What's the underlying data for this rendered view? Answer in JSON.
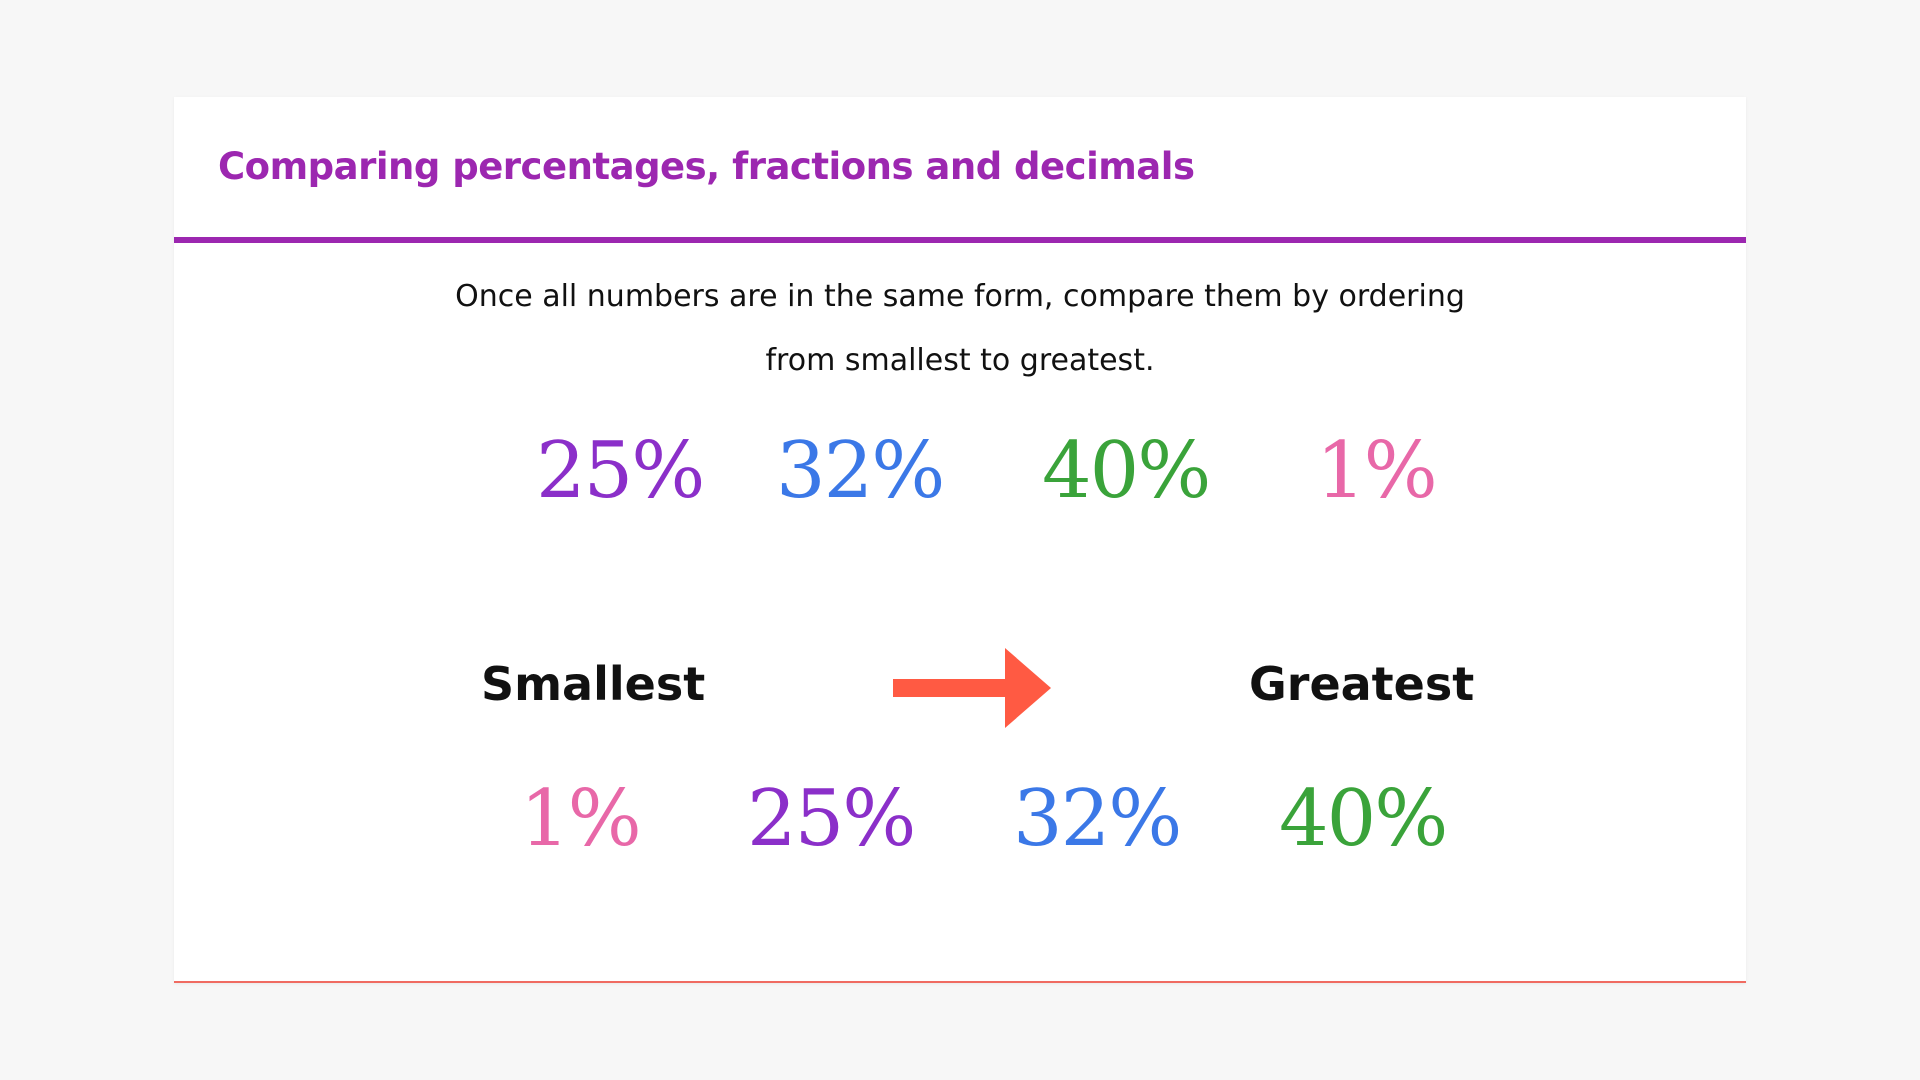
{
  "slide": {
    "title": "Comparing percentages, fractions and decimals",
    "intro_line1": "Once all numbers are in the same form, compare them by ordering",
    "intro_line2": "from smallest to greatest."
  },
  "unordered": [
    {
      "text": "25%",
      "color": "#8b2fc9"
    },
    {
      "text": "32%",
      "color": "#3b78e7"
    },
    {
      "text": "40%",
      "color": "#3aa33a"
    },
    {
      "text": "1%",
      "color": "#e868a8"
    }
  ],
  "labels": {
    "smallest": "Smallest",
    "greatest": "Greatest"
  },
  "ordered": [
    {
      "text": "1%",
      "color": "#e868a8"
    },
    {
      "text": "25%",
      "color": "#8b2fc9"
    },
    {
      "text": "32%",
      "color": "#3b78e7"
    },
    {
      "text": "40%",
      "color": "#3aa33a"
    }
  ],
  "colors": {
    "accent": "#9c27b0",
    "arrow": "#ff5a43",
    "bottom_rule": "#f06b61"
  },
  "icons": {
    "arrow": "arrow-right-icon"
  }
}
